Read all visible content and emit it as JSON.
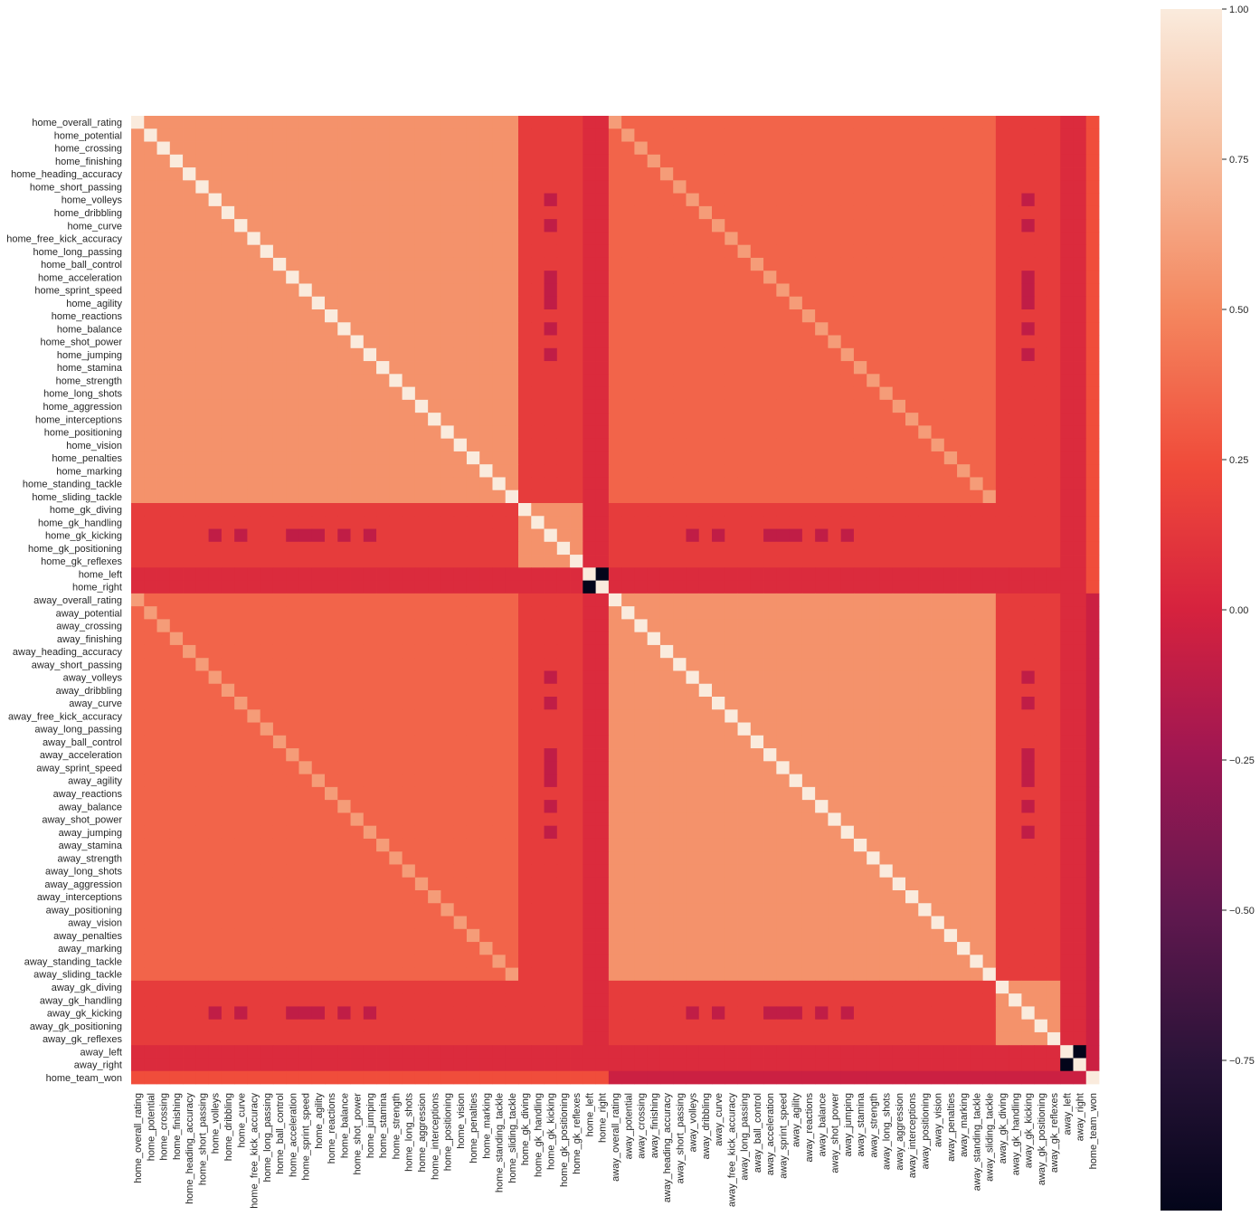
{
  "chart_data": {
    "type": "heatmap",
    "title": "",
    "labels": [
      "home_overall_rating",
      "home_potential",
      "home_crossing",
      "home_finishing",
      "home_heading_accuracy",
      "home_short_passing",
      "home_volleys",
      "home_dribbling",
      "home_curve",
      "home_free_kick_accuracy",
      "home_long_passing",
      "home_ball_control",
      "home_acceleration",
      "home_sprint_speed",
      "home_agility",
      "home_reactions",
      "home_balance",
      "home_shot_power",
      "home_jumping",
      "home_stamina",
      "home_strength",
      "home_long_shots",
      "home_aggression",
      "home_interceptions",
      "home_positioning",
      "home_vision",
      "home_penalties",
      "home_marking",
      "home_standing_tackle",
      "home_sliding_tackle",
      "home_gk_diving",
      "home_gk_handling",
      "home_gk_kicking",
      "home_gk_positioning",
      "home_gk_reflexes",
      "home_left",
      "home_right",
      "away_overall_rating",
      "away_potential",
      "away_crossing",
      "away_finishing",
      "away_heading_accuracy",
      "away_short_passing",
      "away_volleys",
      "away_dribbling",
      "away_curve",
      "away_free_kick_accuracy",
      "away_long_passing",
      "away_ball_control",
      "away_acceleration",
      "away_sprint_speed",
      "away_agility",
      "away_reactions",
      "away_balance",
      "away_shot_power",
      "away_jumping",
      "away_stamina",
      "away_strength",
      "away_long_shots",
      "away_aggression",
      "away_interceptions",
      "away_positioning",
      "away_vision",
      "away_penalties",
      "away_marking",
      "away_standing_tackle",
      "away_sliding_tackle",
      "away_gk_diving",
      "away_gk_handling",
      "away_gk_kicking",
      "away_gk_positioning",
      "away_gk_reflexes",
      "away_left",
      "away_right",
      "home_team_won"
    ],
    "value_range": [
      -1.0,
      1.0
    ],
    "colormap": "rocket",
    "colorbar_ticks": [
      "1.00",
      "0.75",
      "0.50",
      "0.25",
      "0.00",
      "−0.25",
      "−0.50",
      "−0.75"
    ],
    "colorbar_tick_values": [
      1.0,
      0.75,
      0.5,
      0.25,
      0.0,
      -0.25,
      -0.5,
      -0.75
    ],
    "structure": {
      "within_side_skill_corr": 0.55,
      "cross_side_skill_corr": 0.35,
      "gk_block_internal_corr": 0.55,
      "gk_vs_field_corr": 0.15,
      "gk_kicking_vs_mobility_corr": -0.1,
      "left_vs_right_corr": -1.0,
      "left_right_vs_others_corr": 0.05,
      "home_team_won_vs_home_corr": 0.25,
      "home_team_won_vs_away_corr": -0.05
    }
  }
}
